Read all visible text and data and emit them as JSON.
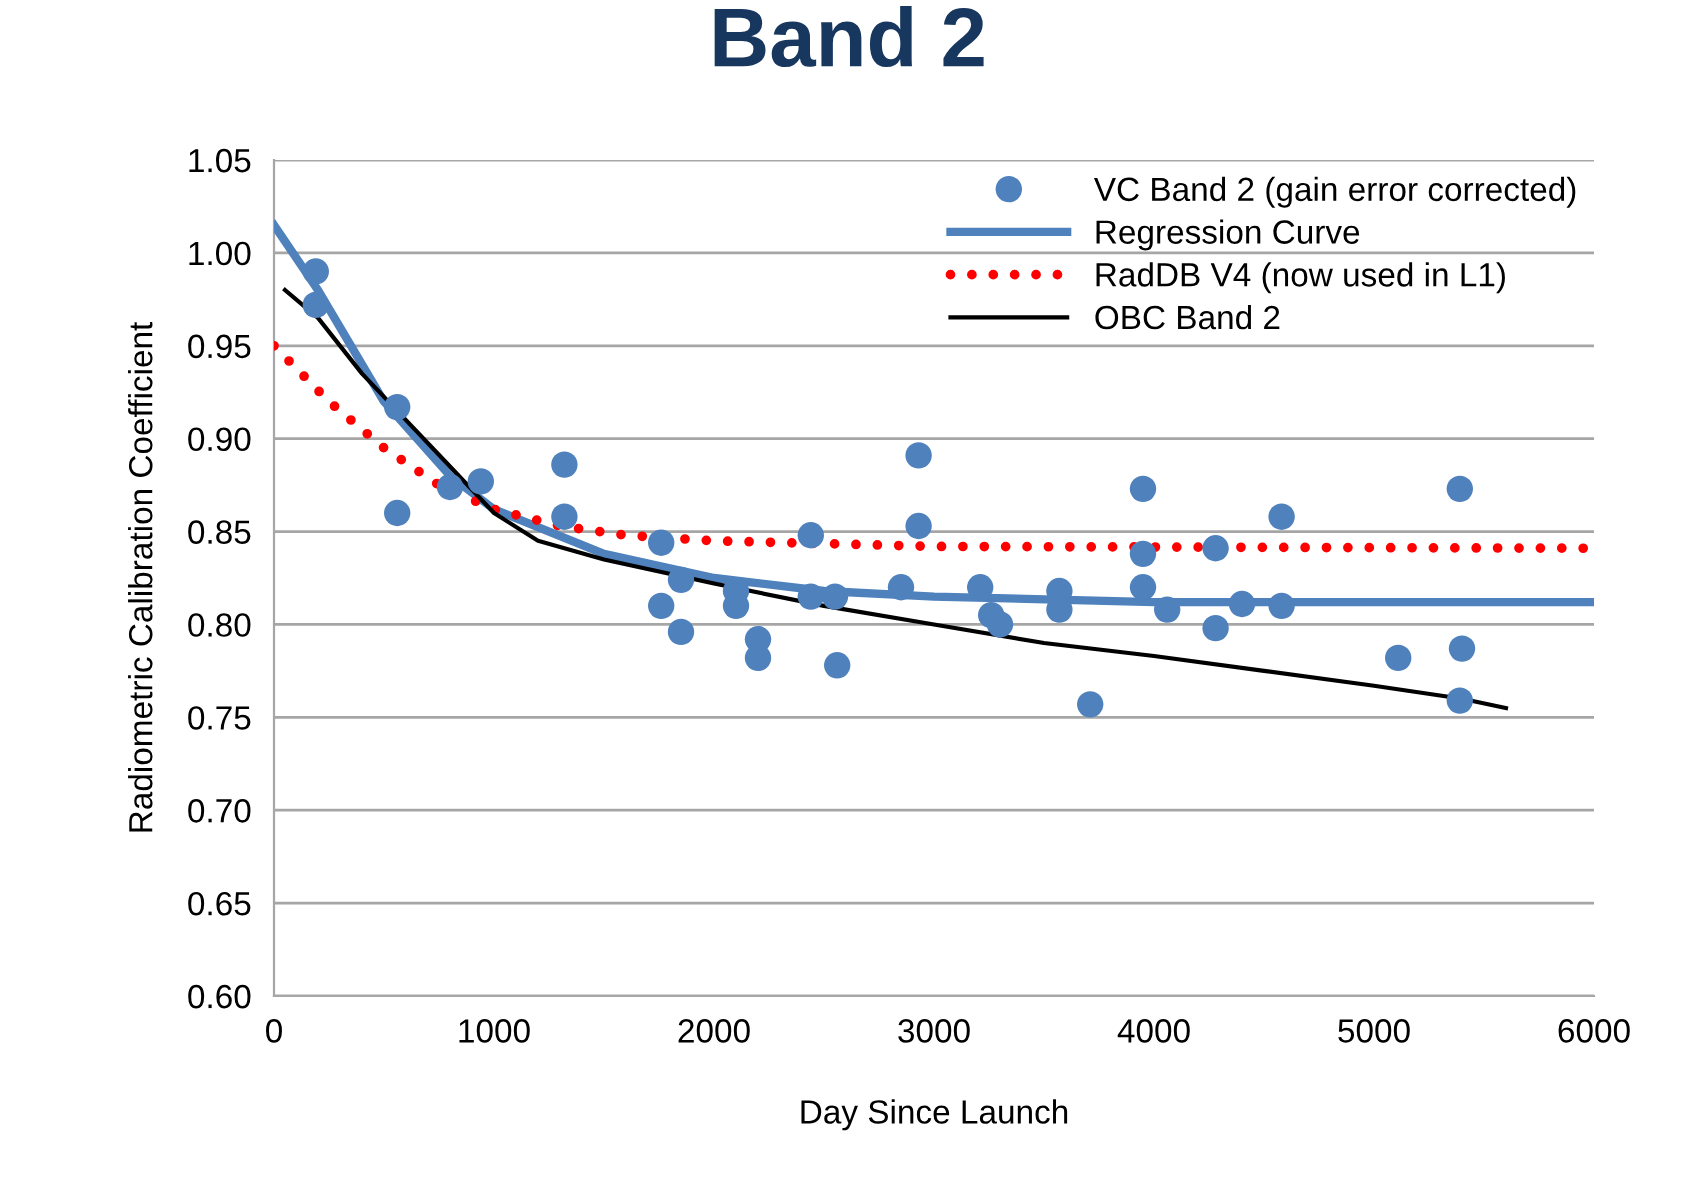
{
  "chart_data": {
    "type": "scatter",
    "title": "Band 2",
    "xlabel": "Day Since Launch",
    "ylabel": "Radiometric Calibration Coefficient",
    "xlim": [
      0,
      6000
    ],
    "xticks": [
      0,
      1000,
      2000,
      3000,
      4000,
      5000,
      6000
    ],
    "ylim": [
      0.6,
      1.05
    ],
    "yticks": [
      {
        "value": 0.6,
        "label": "0.60"
      },
      {
        "value": 0.65,
        "label": "0.65"
      },
      {
        "value": 0.7,
        "label": "0.70"
      },
      {
        "value": 0.75,
        "label": "0.75"
      },
      {
        "value": 0.8,
        "label": "0.80"
      },
      {
        "value": 0.85,
        "label": "0.85"
      },
      {
        "value": 0.9,
        "label": "0.90"
      },
      {
        "value": 0.95,
        "label": "0.95"
      },
      {
        "value": 1.0,
        "label": "1.00"
      },
      {
        "value": 1.05,
        "label": "1.05"
      }
    ],
    "grid": "y",
    "legend": "top right",
    "series": [
      {
        "name": "VC Band 2 (gain error corrected)",
        "marker": "circle",
        "color": "#4f81bd",
        "x": [
          190,
          190,
          560,
          560,
          800,
          940,
          1320,
          1320,
          1760,
          1760,
          1850,
          1850,
          2100,
          2100,
          2200,
          2200,
          2440,
          2440,
          2550,
          2560,
          2850,
          2930,
          2930,
          3210,
          3260,
          3300,
          3570,
          3570,
          3710,
          3950,
          3950,
          3950,
          4060,
          4280,
          4280,
          4400,
          4580,
          4580,
          5110,
          5390,
          5400,
          5390
        ],
        "values": [
          0.99,
          0.972,
          0.917,
          0.86,
          0.874,
          0.877,
          0.886,
          0.858,
          0.844,
          0.81,
          0.824,
          0.796,
          0.818,
          0.81,
          0.792,
          0.782,
          0.848,
          0.815,
          0.815,
          0.778,
          0.82,
          0.891,
          0.853,
          0.82,
          0.805,
          0.8,
          0.818,
          0.808,
          0.757,
          0.873,
          0.838,
          0.82,
          0.808,
          0.798,
          0.841,
          0.811,
          0.858,
          0.81,
          0.782,
          0.873,
          0.787,
          0.759
        ]
      },
      {
        "name": "Regression Curve",
        "type": "line",
        "line_style": "solid",
        "color": "#4f81bd",
        "x": [
          0,
          200,
          500,
          800,
          1000,
          1500,
          2000,
          2500,
          3000,
          4000,
          6000
        ],
        "values": [
          1.015,
          0.98,
          0.92,
          0.88,
          0.862,
          0.838,
          0.825,
          0.818,
          0.815,
          0.812,
          0.812
        ]
      },
      {
        "name": "RadDB V4 (now used in L1)",
        "type": "line",
        "line_style": "dotted",
        "color": "#ff0000",
        "x": [
          0,
          250,
          500,
          750,
          1000,
          1300,
          1600,
          2000,
          3000,
          6000
        ],
        "values": [
          0.95,
          0.92,
          0.895,
          0.875,
          0.862,
          0.853,
          0.848,
          0.845,
          0.842,
          0.841
        ]
      },
      {
        "name": "OBC Band 2",
        "type": "line",
        "line_style": "solid",
        "color": "#000000",
        "x": [
          50,
          200,
          400,
          600,
          800,
          1000,
          1200,
          1500,
          2000,
          2500,
          3000,
          3500,
          4000,
          4500,
          5000,
          5400,
          5600
        ],
        "values": [
          0.98,
          0.965,
          0.935,
          0.91,
          0.885,
          0.86,
          0.845,
          0.835,
          0.822,
          0.81,
          0.8,
          0.79,
          0.783,
          0.775,
          0.767,
          0.76,
          0.755
        ]
      }
    ]
  }
}
